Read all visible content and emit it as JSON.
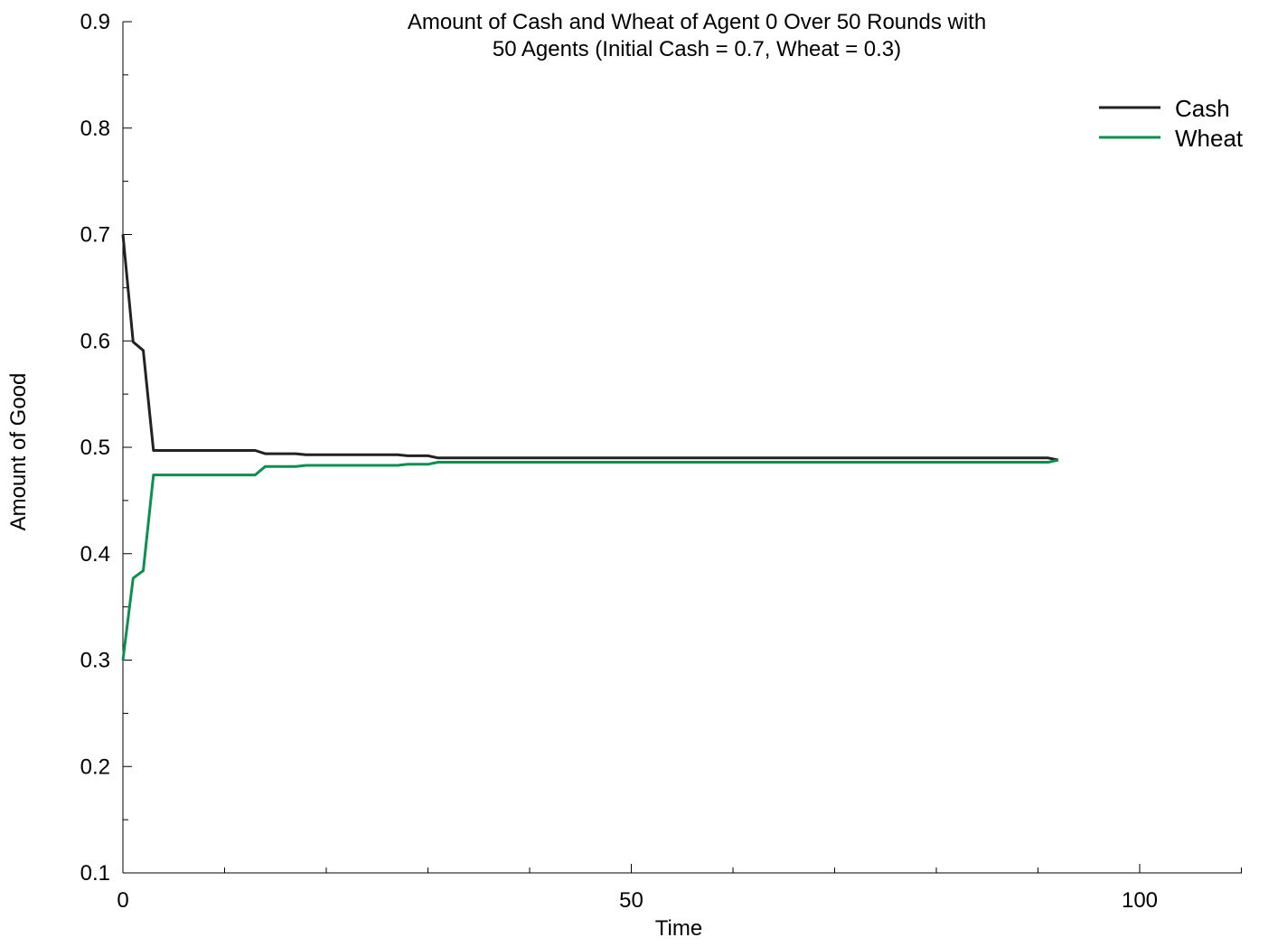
{
  "chart_data": {
    "type": "line",
    "title_line1": "Amount of Cash and Wheat of Agent 0 Over 50 Rounds with",
    "title_line2": "50 Agents (Initial Cash = 0.7, Wheat = 0.3)",
    "xlabel": "Time",
    "ylabel": "Amount of Good",
    "xlim": [
      0,
      110
    ],
    "ylim": [
      0.1,
      0.9
    ],
    "x_ticks": [
      0,
      50,
      100
    ],
    "x_tick_labels": [
      "0",
      "50",
      "100"
    ],
    "y_ticks": [
      0.1,
      0.2,
      0.3,
      0.4,
      0.5,
      0.6,
      0.7,
      0.8,
      0.9
    ],
    "y_tick_labels": [
      "0.1",
      "0.2",
      "0.3",
      "0.4",
      "0.5",
      "0.6",
      "0.7",
      "0.8",
      "0.9"
    ],
    "grid": false,
    "legend_position": "top-right",
    "series": [
      {
        "name": "Cash",
        "color": "#222222",
        "points": [
          [
            0,
            0.7
          ],
          [
            1,
            0.599
          ],
          [
            2,
            0.591
          ],
          [
            3,
            0.497
          ],
          [
            13,
            0.497
          ],
          [
            14,
            0.494
          ],
          [
            17,
            0.494
          ],
          [
            18,
            0.493
          ],
          [
            27,
            0.493
          ],
          [
            28,
            0.492
          ],
          [
            30,
            0.492
          ],
          [
            31,
            0.49
          ],
          [
            91,
            0.49
          ],
          [
            92,
            0.488
          ]
        ]
      },
      {
        "name": "Wheat",
        "color": "#0a9150",
        "points": [
          [
            0,
            0.3
          ],
          [
            1,
            0.377
          ],
          [
            2,
            0.384
          ],
          [
            3,
            0.474
          ],
          [
            13,
            0.474
          ],
          [
            14,
            0.482
          ],
          [
            17,
            0.482
          ],
          [
            18,
            0.483
          ],
          [
            27,
            0.483
          ],
          [
            28,
            0.484
          ],
          [
            30,
            0.484
          ],
          [
            31,
            0.486
          ],
          [
            91,
            0.486
          ],
          [
            92,
            0.488
          ]
        ]
      }
    ]
  }
}
